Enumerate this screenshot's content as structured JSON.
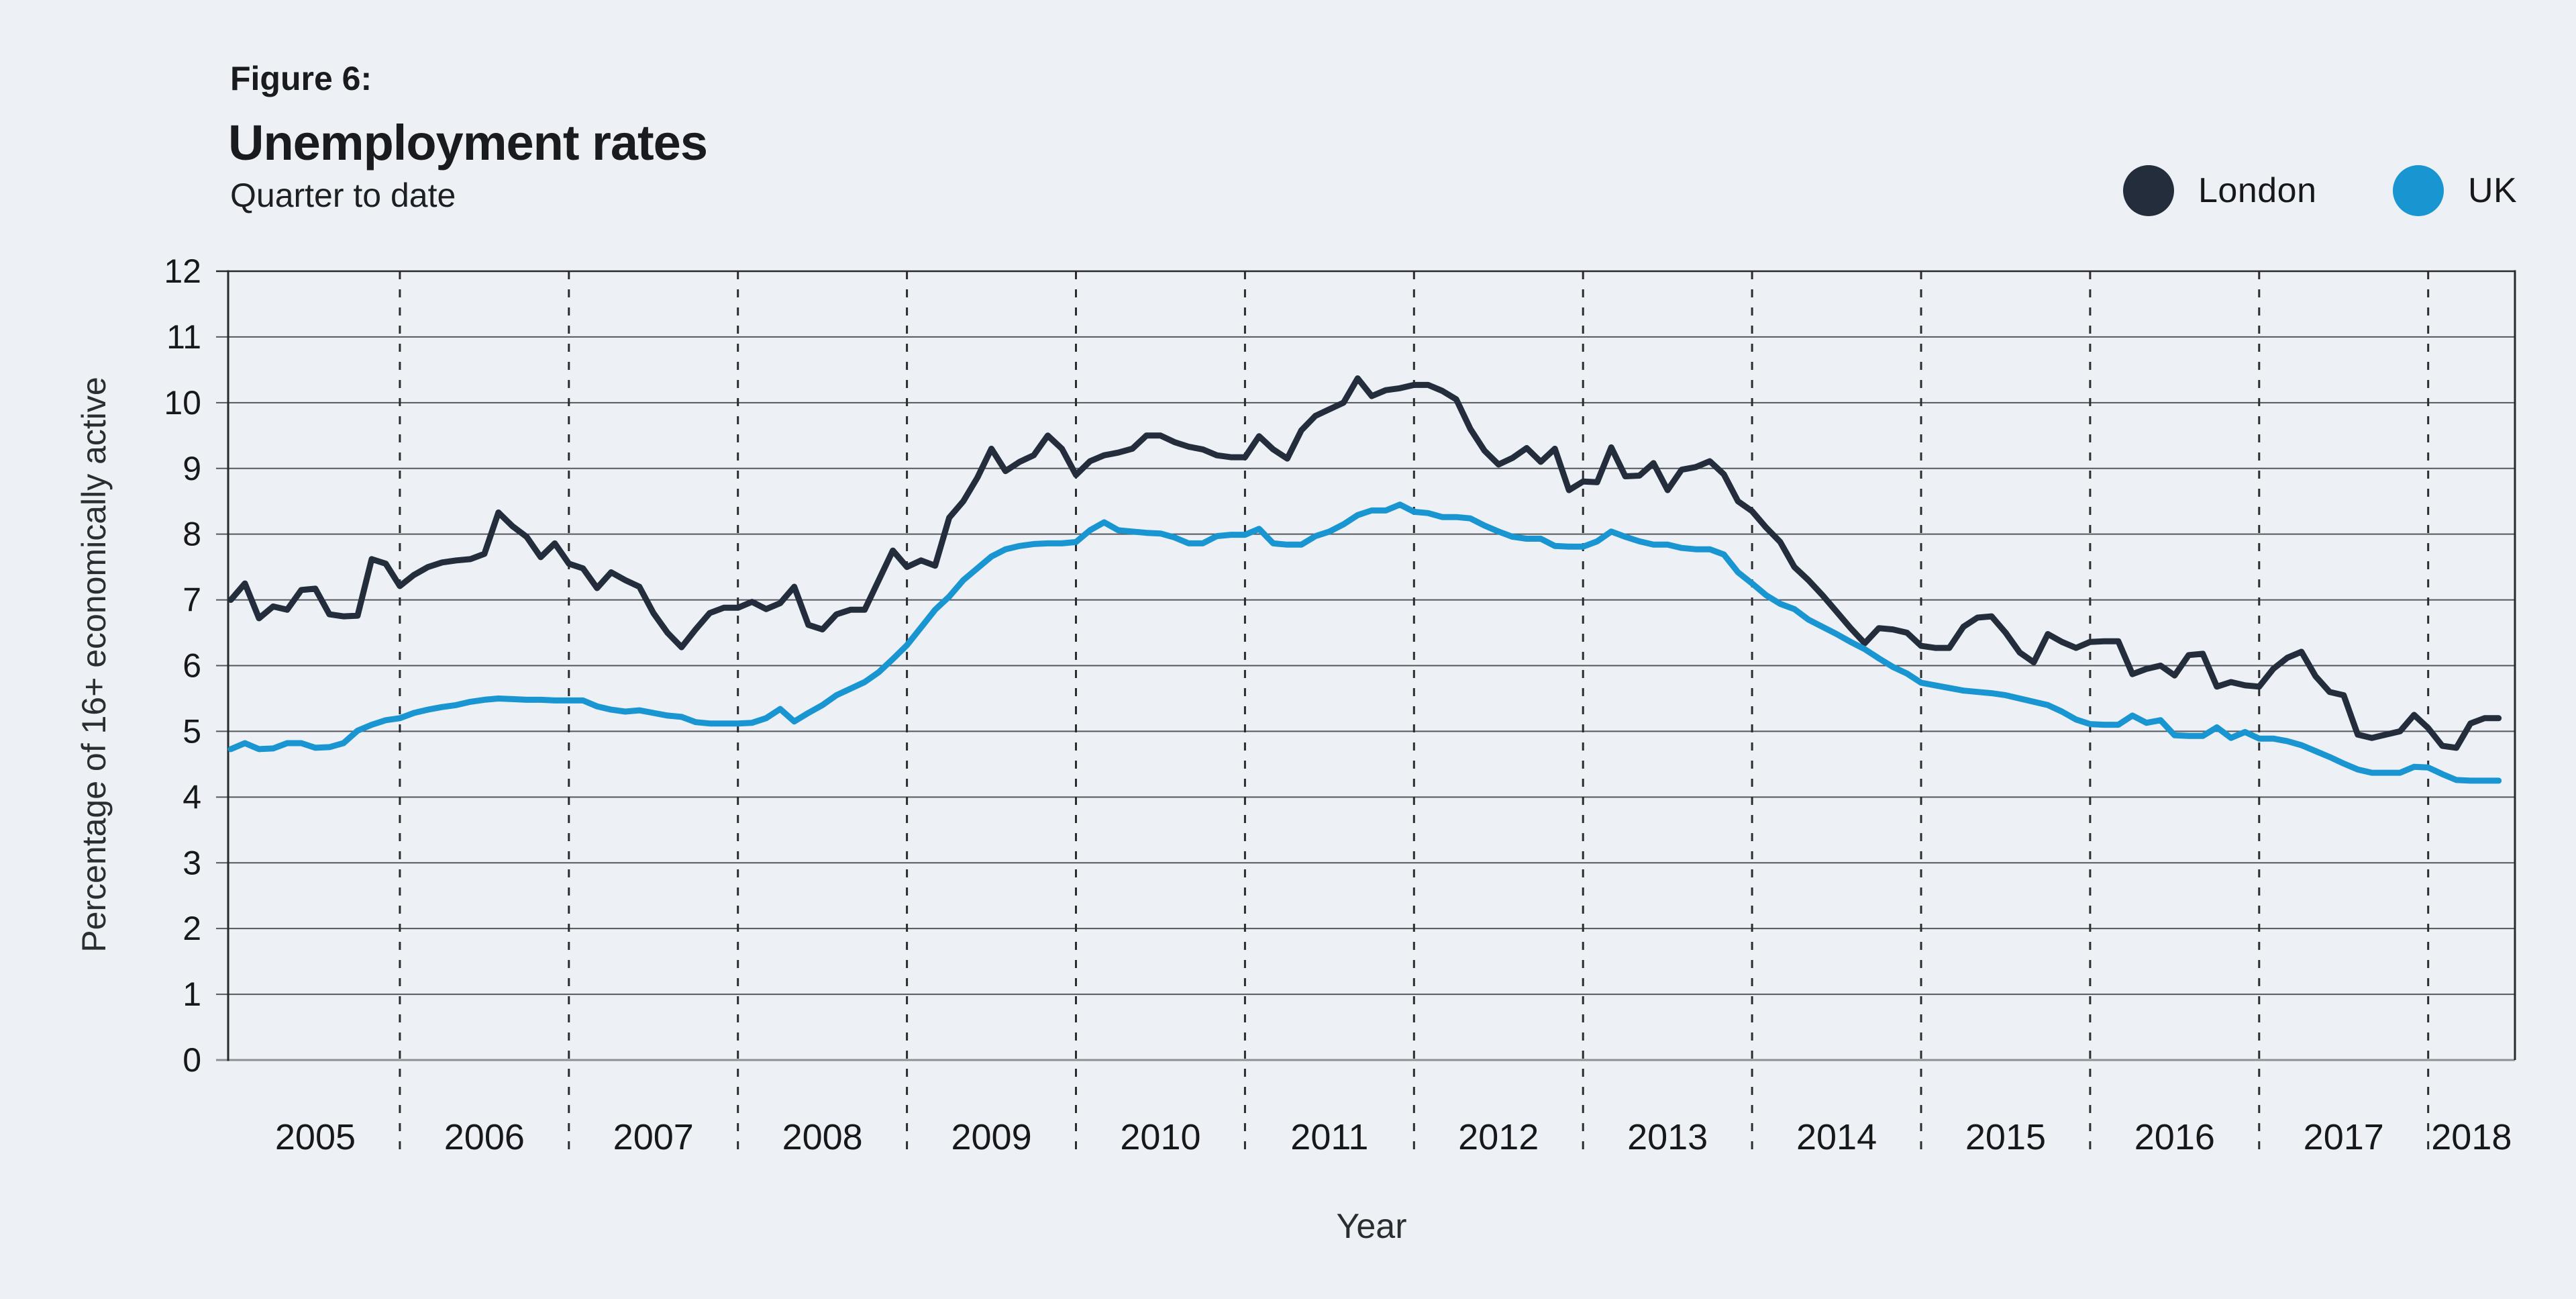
{
  "header": {
    "figure_label": "Figure 6:",
    "title": "Unemployment rates",
    "subtitle": "Quarter to date"
  },
  "legend": {
    "position": "top-right",
    "items": [
      {
        "label": "London",
        "color": "#232d3c"
      },
      {
        "label": "UK",
        "color": "#1996d2"
      }
    ]
  },
  "chart_data": {
    "type": "line",
    "title": "Unemployment rates",
    "subtitle": "Quarter to date",
    "xlabel": "Year",
    "ylabel": "Percentage of 16+ economically active",
    "ylim": [
      0,
      12
    ],
    "yticks": [
      0,
      1,
      2,
      3,
      4,
      5,
      6,
      7,
      8,
      9,
      10,
      11,
      12
    ],
    "x_year_labels": [
      "2005",
      "2006",
      "2007",
      "2008",
      "2009",
      "2010",
      "2011",
      "2012",
      "2013",
      "2014",
      "2015",
      "2016",
      "2017",
      "2018"
    ],
    "x_start": 2005.0,
    "x_step": 0.0833333,
    "x_end": 2018.42,
    "grid": "horizontal solid gridlines; dashed vertical year separators",
    "legend_position": "top-right",
    "series": [
      {
        "name": "London",
        "color": "#232d3c",
        "values": [
          7.0,
          7.25,
          6.72,
          6.9,
          6.85,
          7.15,
          7.17,
          6.78,
          6.75,
          6.76,
          7.62,
          7.55,
          7.21,
          7.38,
          7.5,
          7.57,
          7.6,
          7.62,
          7.7,
          8.33,
          8.12,
          7.96,
          7.65,
          7.86,
          7.55,
          7.48,
          7.18,
          7.42,
          7.3,
          7.2,
          6.8,
          6.5,
          6.28,
          6.55,
          6.8,
          6.88,
          6.88,
          6.97,
          6.86,
          6.95,
          7.2,
          6.62,
          6.55,
          6.78,
          6.85,
          6.85,
          7.3,
          7.75,
          7.5,
          7.6,
          7.52,
          8.25,
          8.5,
          8.86,
          9.3,
          8.96,
          9.1,
          9.2,
          9.5,
          9.3,
          8.9,
          9.11,
          9.2,
          9.24,
          9.3,
          9.5,
          9.5,
          9.4,
          9.33,
          9.29,
          9.2,
          9.17,
          9.17,
          9.49,
          9.29,
          9.15,
          9.58,
          9.8,
          9.9,
          10.0,
          10.37,
          10.1,
          10.19,
          10.22,
          10.27,
          10.27,
          10.18,
          10.05,
          9.6,
          9.27,
          9.06,
          9.16,
          9.31,
          9.1,
          9.3,
          8.67,
          8.8,
          8.79,
          9.32,
          8.88,
          8.89,
          9.08,
          8.67,
          8.98,
          9.02,
          9.11,
          8.91,
          8.5,
          8.35,
          8.1,
          7.88,
          7.5,
          7.3,
          7.07,
          6.82,
          6.57,
          6.34,
          6.57,
          6.55,
          6.5,
          6.3,
          6.27,
          6.27,
          6.59,
          6.73,
          6.75,
          6.5,
          6.2,
          6.05,
          6.48,
          6.36,
          6.27,
          6.36,
          6.37,
          6.37,
          5.87,
          5.95,
          6.0,
          5.85,
          6.16,
          6.18,
          5.68,
          5.75,
          5.7,
          5.68,
          5.95,
          6.12,
          6.21,
          5.84,
          5.6,
          5.55,
          4.95,
          4.9,
          4.95,
          5.0,
          5.25,
          5.05,
          4.78,
          4.75,
          5.12,
          5.2,
          5.2
        ]
      },
      {
        "name": "UK",
        "color": "#1996d2",
        "values": [
          4.73,
          4.82,
          4.73,
          4.74,
          4.82,
          4.82,
          4.75,
          4.76,
          4.82,
          5.01,
          5.1,
          5.17,
          5.2,
          5.28,
          5.33,
          5.37,
          5.4,
          5.45,
          5.48,
          5.5,
          5.49,
          5.48,
          5.48,
          5.47,
          5.47,
          5.47,
          5.38,
          5.33,
          5.3,
          5.32,
          5.28,
          5.24,
          5.22,
          5.14,
          5.12,
          5.12,
          5.12,
          5.13,
          5.2,
          5.34,
          5.15,
          5.28,
          5.4,
          5.55,
          5.65,
          5.75,
          5.9,
          6.1,
          6.31,
          6.58,
          6.85,
          7.05,
          7.3,
          7.48,
          7.66,
          7.77,
          7.82,
          7.85,
          7.86,
          7.86,
          7.88,
          8.06,
          8.18,
          8.06,
          8.04,
          8.02,
          8.01,
          7.95,
          7.86,
          7.86,
          7.97,
          7.99,
          7.99,
          8.08,
          7.86,
          7.84,
          7.84,
          7.97,
          8.04,
          8.15,
          8.29,
          8.36,
          8.36,
          8.45,
          8.34,
          8.32,
          8.26,
          8.26,
          8.24,
          8.13,
          8.04,
          7.96,
          7.93,
          7.93,
          7.82,
          7.81,
          7.81,
          7.89,
          8.04,
          7.96,
          7.89,
          7.84,
          7.84,
          7.79,
          7.77,
          7.77,
          7.69,
          7.42,
          7.25,
          7.07,
          6.94,
          6.86,
          6.7,
          6.59,
          6.48,
          6.36,
          6.25,
          6.11,
          5.98,
          5.88,
          5.74,
          5.7,
          5.66,
          5.62,
          5.6,
          5.58,
          5.55,
          5.5,
          5.45,
          5.4,
          5.3,
          5.18,
          5.11,
          5.1,
          5.1,
          5.24,
          5.13,
          5.17,
          4.94,
          4.93,
          4.93,
          5.06,
          4.9,
          4.99,
          4.89,
          4.89,
          4.85,
          4.79,
          4.7,
          4.61,
          4.51,
          4.42,
          4.37,
          4.37,
          4.37,
          4.46,
          4.45,
          4.35,
          4.26,
          4.25,
          4.25,
          4.25
        ]
      }
    ]
  }
}
